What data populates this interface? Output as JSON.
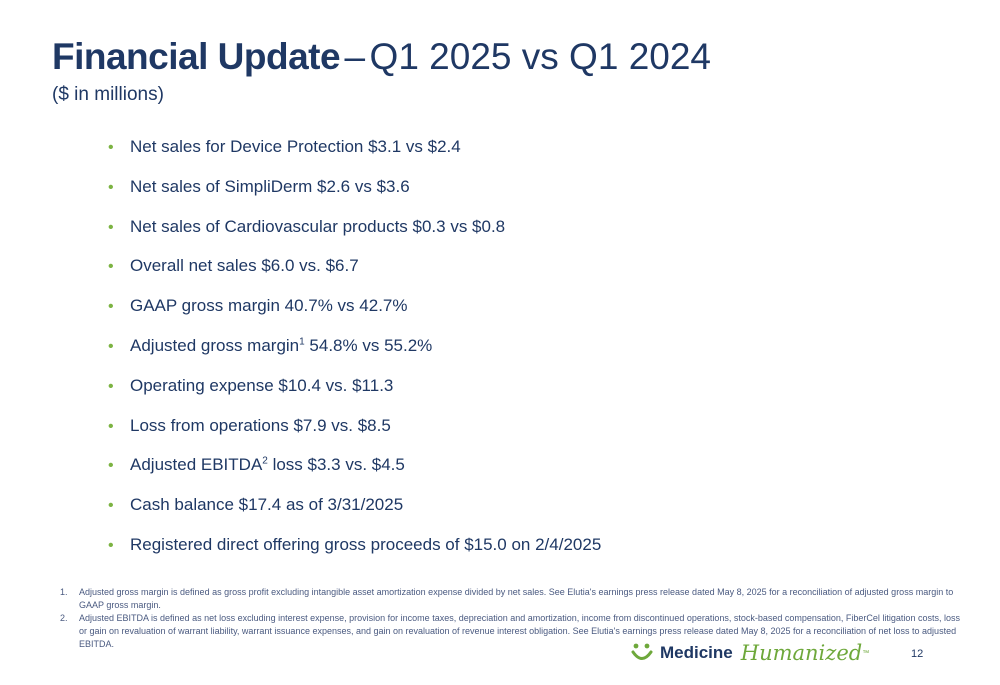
{
  "title": {
    "bold": "Financial Update",
    "dash": "–",
    "rest": "Q1 2025 vs Q1 2024",
    "subtitle": "($ in millions)"
  },
  "bullets": [
    {
      "text": "Net sales for Device Protection $3.1 vs $2.4"
    },
    {
      "text": "Net sales of SimpliDerm $2.6 vs $3.6"
    },
    {
      "text": "Net sales of Cardiovascular products $0.3 vs $0.8"
    },
    {
      "text": "Overall net sales $6.0 vs. $6.7"
    },
    {
      "text": "GAAP gross margin 40.7% vs 42.7%"
    },
    {
      "text": "Adjusted gross margin",
      "sup": "1",
      "tail": " 54.8% vs 55.2%"
    },
    {
      "text": "Operating expense $10.4 vs. $11.3"
    },
    {
      "text": "Loss from operations $7.9 vs. $8.5"
    },
    {
      "text": "Adjusted EBITDA",
      "sup": "2",
      "tail": " loss $3.3 vs. $4.5"
    },
    {
      "text": "Cash balance $17.4 as of 3/31/2025"
    },
    {
      "text": "Registered direct offering gross proceeds of $15.0 on 2/4/2025"
    }
  ],
  "footnotes": [
    {
      "num": "1.",
      "text": "Adjusted gross margin is defined as gross profit excluding intangible asset amortization expense divided by net sales. See Elutia's earnings press release dated May 8, 2025 for a reconciliation of adjusted gross margin to GAAP gross margin."
    },
    {
      "num": "2.",
      "text": "Adjusted EBITDA is defined as net loss excluding interest expense, provision for income taxes, depreciation and amortization, income from discontinued operations, stock-based compensation, FiberCel litigation costs, loss or gain on revaluation of warrant liability, warrant issuance expenses, and gain on revaluation of revenue interest obligation. See Elutia's earnings press release dated May 8, 2025 for a reconciliation of net loss to adjusted EBITDA."
    }
  ],
  "logo": {
    "medicine": "Medicine",
    "humanized": "Humanized",
    "tm": "™"
  },
  "page_number": "12",
  "colors": {
    "navy": "#1f3864",
    "green": "#7cb342"
  }
}
